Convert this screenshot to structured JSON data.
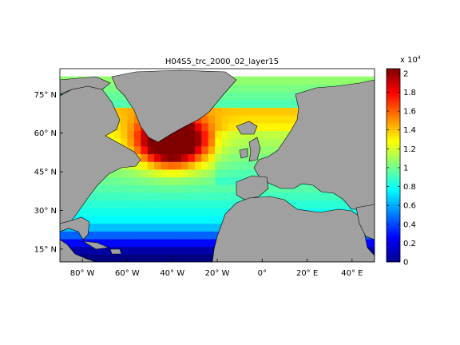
{
  "figure": {
    "title": "H04S5_trc_2000_02_layer15"
  },
  "map": {
    "lat_range": [
      10,
      85
    ],
    "lon_range": [
      -90,
      50
    ],
    "lat_ticks": [
      {
        "value": 15,
        "label": "15° N"
      },
      {
        "value": 30,
        "label": "30° N"
      },
      {
        "value": 45,
        "label": "45° N"
      },
      {
        "value": 60,
        "label": "60° N"
      },
      {
        "value": 75,
        "label": "75° N"
      }
    ],
    "lon_ticks": [
      {
        "value": -80,
        "label": "80° W"
      },
      {
        "value": -60,
        "label": "60° W"
      },
      {
        "value": -40,
        "label": "40° W"
      },
      {
        "value": -20,
        "label": "20° W"
      },
      {
        "value": 0,
        "label": "0°"
      },
      {
        "value": 20,
        "label": "20° E"
      },
      {
        "value": 40,
        "label": "40° E"
      }
    ],
    "land_color": "#a0a0a0",
    "ice_color": "#ffffff"
  },
  "colorbar": {
    "exponent_label": "x 10",
    "exponent_power": "4",
    "range": [
      0,
      2.05
    ],
    "ticks": [
      "0",
      "0.2",
      "0.4",
      "0.6",
      "0.8",
      "1",
      "1.2",
      "1.4",
      "1.6",
      "1.8",
      "2"
    ],
    "colormap": "jet"
  }
}
